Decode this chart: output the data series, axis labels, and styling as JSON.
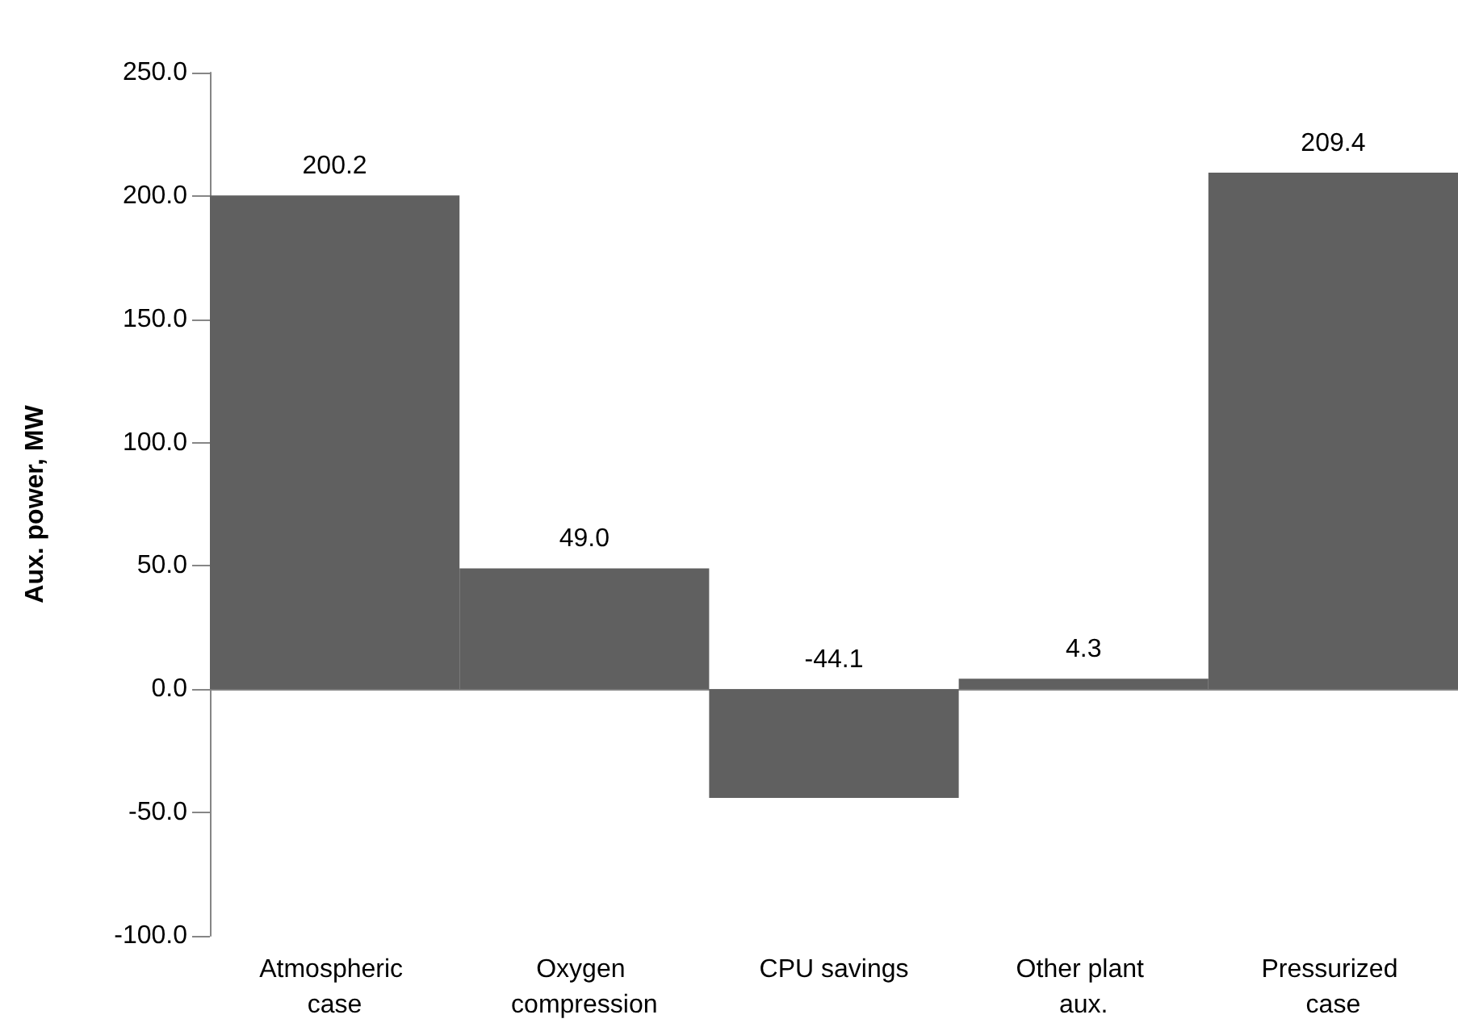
{
  "chart_data": {
    "type": "bar",
    "ylabel": "Aux. power, MW",
    "categories": [
      "Atmospheric case",
      "Oxygen compression",
      "CPU savings",
      "Other plant aux.",
      "Pressurized case"
    ],
    "values": [
      200.2,
      49.0,
      -44.1,
      4.3,
      209.4
    ],
    "value_labels": [
      "200.2",
      "49.0",
      "-44.1",
      "4.3",
      "209.4"
    ],
    "color": "#606060",
    "ylim": [
      -100,
      250
    ],
    "yticks": [
      {
        "value": -100,
        "label": "-100.0"
      },
      {
        "value": -50,
        "label": "-50.0"
      },
      {
        "value": 0,
        "label": "0.0"
      },
      {
        "value": 50,
        "label": "50.0"
      },
      {
        "value": 100,
        "label": "100.0"
      },
      {
        "value": 150,
        "label": "150.0"
      },
      {
        "value": 200,
        "label": "200.0"
      },
      {
        "value": 250,
        "label": "250.0"
      }
    ],
    "legend": false
  }
}
